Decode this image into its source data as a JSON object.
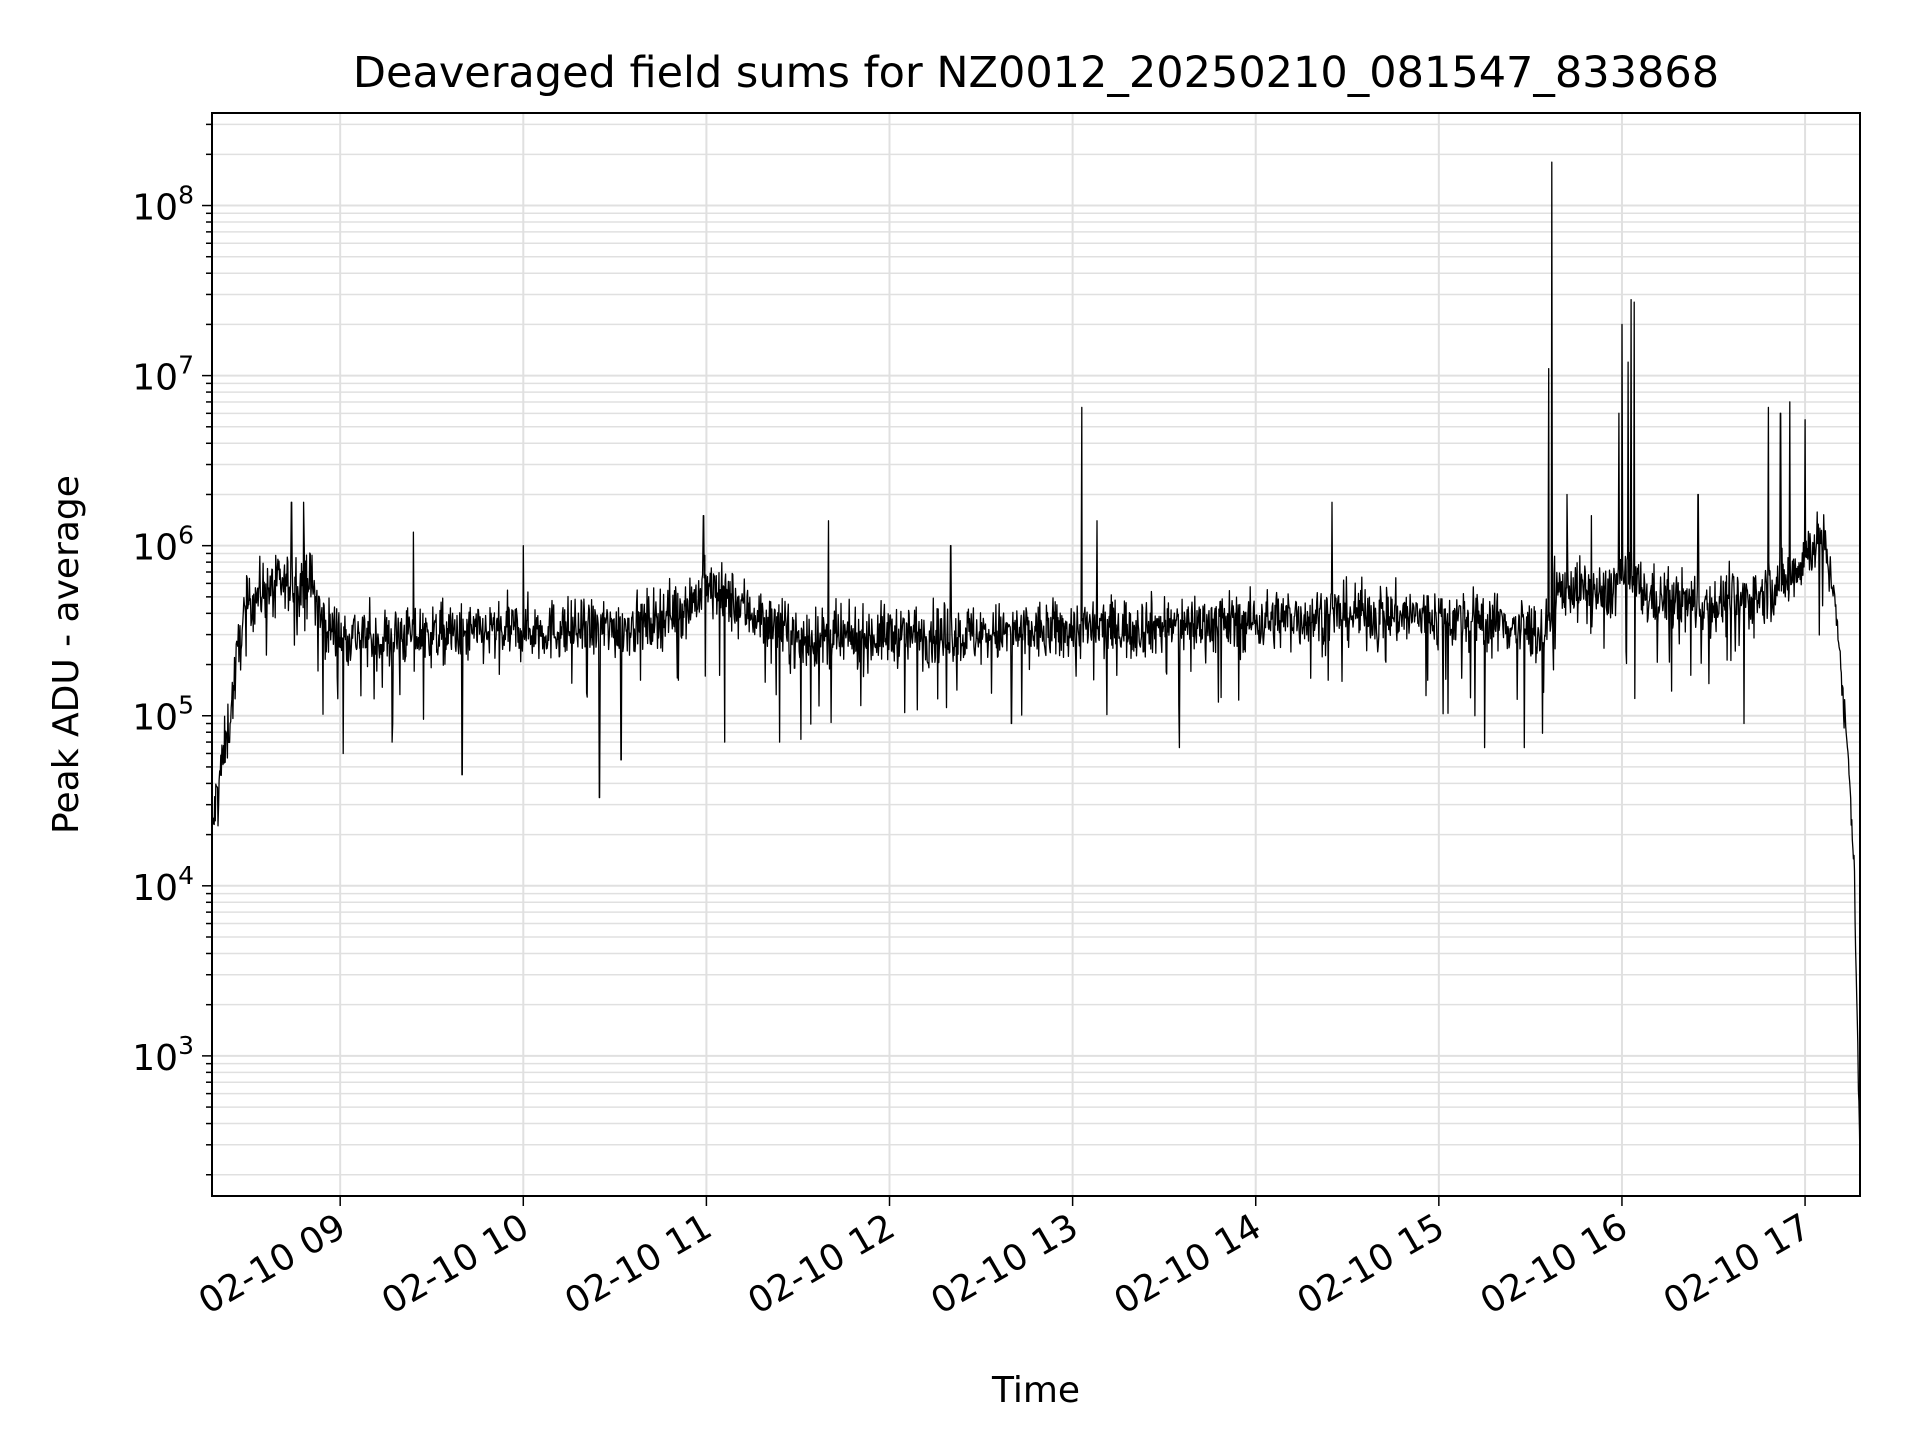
{
  "chart_data": {
    "type": "line",
    "title": "Deaveraged field sums for NZ0012_20250210_081547_833868",
    "xlabel": "Time",
    "ylabel": "Peak ADU - average",
    "yscale": "log",
    "xlim": [
      "2025-02-10 08:18",
      "2025-02-10 17:18"
    ],
    "ylim": [
      150,
      350000000
    ],
    "grid": true,
    "line_color": "#000000",
    "grid_color": "#e0e0e0",
    "x_ticks": [
      {
        "value": "2025-02-10 09:00",
        "label": "02-10 09"
      },
      {
        "value": "2025-02-10 10:00",
        "label": "02-10 10"
      },
      {
        "value": "2025-02-10 11:00",
        "label": "02-10 11"
      },
      {
        "value": "2025-02-10 12:00",
        "label": "02-10 12"
      },
      {
        "value": "2025-02-10 13:00",
        "label": "02-10 13"
      },
      {
        "value": "2025-02-10 14:00",
        "label": "02-10 14"
      },
      {
        "value": "2025-02-10 15:00",
        "label": "02-10 15"
      },
      {
        "value": "2025-02-10 16:00",
        "label": "02-10 16"
      },
      {
        "value": "2025-02-10 17:00",
        "label": "02-10 17"
      }
    ],
    "y_ticks": [
      {
        "value": 1000,
        "base": "10",
        "exp": "3"
      },
      {
        "value": 10000,
        "base": "10",
        "exp": "4"
      },
      {
        "value": 100000,
        "base": "10",
        "exp": "5"
      },
      {
        "value": 1000000,
        "base": "10",
        "exp": "6"
      },
      {
        "value": 10000000,
        "base": "10",
        "exp": "7"
      },
      {
        "value": 100000000,
        "base": "10",
        "exp": "8"
      }
    ],
    "series": [
      {
        "x": [
          "2025-02-10 08:18",
          "2025-02-10 08:20",
          "2025-02-10 08:22",
          "2025-02-10 08:24",
          "2025-02-10 08:26",
          "2025-02-10 08:28",
          "2025-02-10 08:30",
          "2025-02-10 08:33",
          "2025-02-10 08:36",
          "2025-02-10 08:40",
          "2025-02-10 08:44",
          "2025-02-10 08:48",
          "2025-02-10 08:50",
          "2025-02-10 08:52",
          "2025-02-10 08:54",
          "2025-02-10 09:00",
          "2025-02-10 09:06",
          "2025-02-10 09:12",
          "2025-02-10 09:24",
          "2025-02-10 09:40",
          "2025-02-10 10:00",
          "2025-02-10 10:24",
          "2025-02-10 10:40",
          "2025-02-10 10:54",
          "2025-02-10 11:00",
          "2025-02-10 11:06",
          "2025-02-10 11:30",
          "2025-02-10 11:45",
          "2025-02-10 12:00",
          "2025-02-10 12:30",
          "2025-02-10 13:00",
          "2025-02-10 13:30",
          "2025-02-10 14:00",
          "2025-02-10 14:30",
          "2025-02-10 15:00",
          "2025-02-10 15:20",
          "2025-02-10 15:30",
          "2025-02-10 15:35",
          "2025-02-10 15:38",
          "2025-02-10 15:42",
          "2025-02-10 15:45",
          "2025-02-10 15:52",
          "2025-02-10 15:55",
          "2025-02-10 15:58",
          "2025-02-10 16:01",
          "2025-02-10 16:04",
          "2025-02-10 16:08",
          "2025-02-10 16:15",
          "2025-02-10 16:30",
          "2025-02-10 16:45",
          "2025-02-10 16:55",
          "2025-02-10 17:02",
          "2025-02-10 17:06",
          "2025-02-10 17:08",
          "2025-02-10 17:10",
          "2025-02-10 17:12",
          "2025-02-10 17:14",
          "2025-02-10 17:16",
          "2025-02-10 17:17",
          "2025-02-10 17:18"
        ],
        "y": [
          20000,
          40000,
          60000,
          100000,
          200000,
          350000,
          450000,
          520000,
          560000,
          580000,
          600000,
          620000,
          640000,
          500000,
          350000,
          300000,
          300000,
          280000,
          300000,
          300000,
          320000,
          320000,
          350000,
          450000,
          560000,
          500000,
          280000,
          280000,
          300000,
          300000,
          320000,
          340000,
          360000,
          400000,
          380000,
          350000,
          320000,
          300000,
          500000,
          600000,
          550000,
          520000,
          500000,
          600000,
          700000,
          600000,
          500000,
          480000,
          450000,
          500000,
          650000,
          1000000,
          1100000,
          700000,
          500000,
          150000,
          60000,
          15000,
          2000,
          200
        ]
      }
    ],
    "spikes": [
      {
        "x": "2025-02-10 08:44",
        "y": 1800000
      },
      {
        "x": "2025-02-10 08:48",
        "y": 1800000
      },
      {
        "x": "2025-02-10 09:01",
        "y": 60000
      },
      {
        "x": "2025-02-10 09:17",
        "y": 70000
      },
      {
        "x": "2025-02-10 09:24",
        "y": 1200000
      },
      {
        "x": "2025-02-10 09:40",
        "y": 45000
      },
      {
        "x": "2025-02-10 10:00",
        "y": 1000000
      },
      {
        "x": "2025-02-10 10:25",
        "y": 33000
      },
      {
        "x": "2025-02-10 10:32",
        "y": 55000
      },
      {
        "x": "2025-02-10 10:59",
        "y": 1500000
      },
      {
        "x": "2025-02-10 11:06",
        "y": 70000
      },
      {
        "x": "2025-02-10 11:24",
        "y": 70000
      },
      {
        "x": "2025-02-10 11:40",
        "y": 1400000
      },
      {
        "x": "2025-02-10 12:20",
        "y": 1000000
      },
      {
        "x": "2025-02-10 12:40",
        "y": 90000
      },
      {
        "x": "2025-02-10 13:03",
        "y": 6500000
      },
      {
        "x": "2025-02-10 13:08",
        "y": 1400000
      },
      {
        "x": "2025-02-10 13:35",
        "y": 65000
      },
      {
        "x": "2025-02-10 14:25",
        "y": 1800000
      },
      {
        "x": "2025-02-10 15:15",
        "y": 65000
      },
      {
        "x": "2025-02-10 15:28",
        "y": 65000
      },
      {
        "x": "2025-02-10 15:36",
        "y": 11000000
      },
      {
        "x": "2025-02-10 15:37",
        "y": 180000000
      },
      {
        "x": "2025-02-10 15:42",
        "y": 2000000
      },
      {
        "x": "2025-02-10 15:50",
        "y": 1500000
      },
      {
        "x": "2025-02-10 15:59",
        "y": 6000000
      },
      {
        "x": "2025-02-10 16:00",
        "y": 20000000
      },
      {
        "x": "2025-02-10 16:02",
        "y": 12000000
      },
      {
        "x": "2025-02-10 16:03",
        "y": 28000000
      },
      {
        "x": "2025-02-10 16:04",
        "y": 27000000
      },
      {
        "x": "2025-02-10 16:25",
        "y": 2000000
      },
      {
        "x": "2025-02-10 16:40",
        "y": 90000
      },
      {
        "x": "2025-02-10 16:48",
        "y": 6500000
      },
      {
        "x": "2025-02-10 16:52",
        "y": 6000000
      },
      {
        "x": "2025-02-10 16:55",
        "y": 7000000
      },
      {
        "x": "2025-02-10 17:00",
        "y": 5500000
      }
    ]
  }
}
